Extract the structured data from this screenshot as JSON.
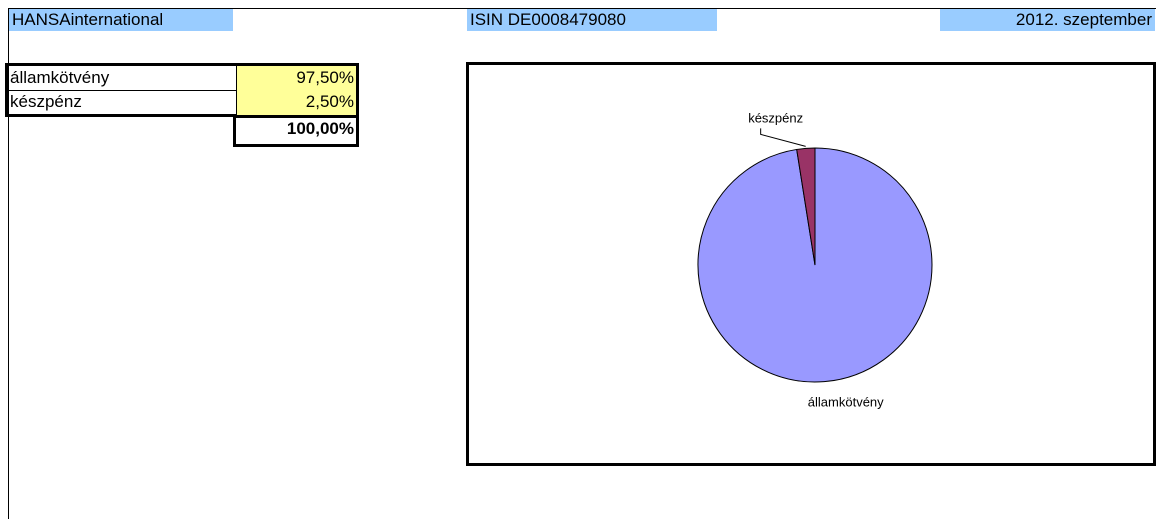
{
  "header": {
    "fund": "HANSAinternational",
    "isin": "ISIN DE0008479080",
    "date": "2012. szeptember"
  },
  "table": {
    "rows": [
      [
        "államkötvény",
        "97,50%"
      ],
      [
        "készpénz",
        "2,50%"
      ]
    ],
    "total": "100,00%"
  },
  "chart_data": {
    "type": "pie",
    "categories": [
      "államkötvény",
      "készpénz"
    ],
    "values": [
      97.5,
      2.5
    ],
    "colors": [
      "#9999ff",
      "#993366"
    ]
  }
}
